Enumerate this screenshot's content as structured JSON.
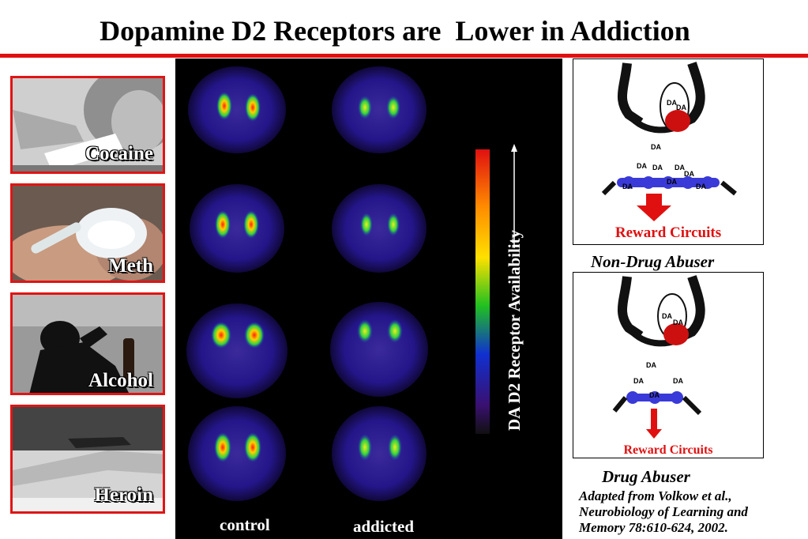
{
  "title": "Dopamine D2 Receptors are  Lower in Addiction",
  "photos": [
    {
      "label": "Cocaine"
    },
    {
      "label": "Meth"
    },
    {
      "label": "Alcohol"
    },
    {
      "label": "Heroin"
    }
  ],
  "scans": {
    "columns": [
      "control",
      "addicted"
    ],
    "scale_label": "DA D2 Receptor Availability"
  },
  "diagrams": {
    "top": {
      "reward_label": "Reward Circuits",
      "caption": "Non-Drug Abuser",
      "da": "DA"
    },
    "bottom": {
      "reward_label": "Reward Circuits",
      "caption": "Drug Abuser",
      "da": "DA"
    }
  },
  "reference": {
    "lines": [
      "Adapted from Volkow et al.,",
      "Neurobiology of Learning and",
      "Memory 78:610-624, 2002."
    ]
  },
  "colors": {
    "accent_red": "#e01010",
    "scan_bg": "#000000",
    "receptor_blue": "#3a3ad8"
  }
}
